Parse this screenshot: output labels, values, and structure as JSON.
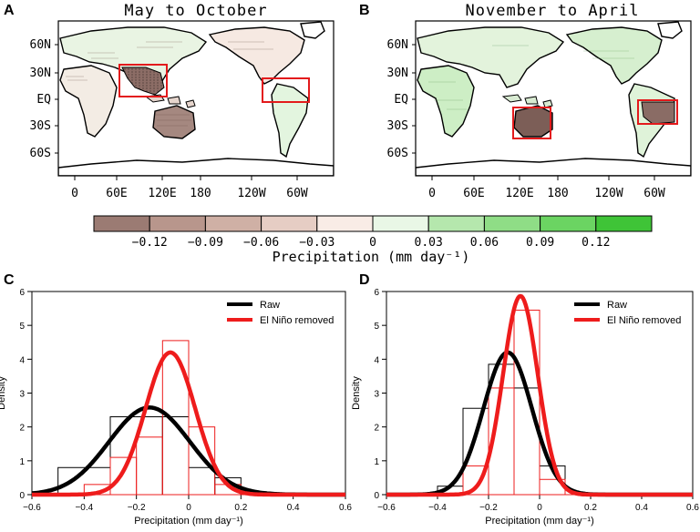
{
  "panels": {
    "A": {
      "letter": "A",
      "title": "May to October"
    },
    "B": {
      "letter": "B",
      "title": "November to April"
    },
    "C": {
      "letter": "C"
    },
    "D": {
      "letter": "D"
    }
  },
  "map_axes": {
    "lat_labels": [
      "60N",
      "30N",
      "EQ",
      "30S",
      "60S"
    ],
    "lon_labels": [
      "0",
      "60E",
      "120E",
      "180",
      "120W",
      "60W"
    ]
  },
  "colorbar": {
    "tick_labels": [
      "−0.12",
      "−0.09",
      "−0.06",
      "−0.03",
      "0",
      "0.03",
      "0.06",
      "0.09",
      "0.12"
    ],
    "label": "Precipitation (mm day⁻¹)",
    "colors": [
      "#9b7b73",
      "#b8968c",
      "#cfb0a5",
      "#e6cdc4",
      "#f9ece6",
      "#e9f7e6",
      "#b5e7ad",
      "#8fdd86",
      "#6bd462",
      "#3fc437"
    ]
  },
  "chart_data": [
    {
      "panel": "C",
      "type": "line",
      "xlabel": "Precipitation (mm day⁻¹)",
      "ylabel": "Density",
      "xlim": [
        -0.6,
        0.6
      ],
      "ylim": [
        0,
        6
      ],
      "xticks": [
        "−0.6",
        "−0.4",
        "−0.2",
        "0",
        "0.2",
        "0.4",
        "0.6"
      ],
      "yticks": [
        "0",
        "1",
        "2",
        "3",
        "4",
        "5",
        "6"
      ],
      "legend_position": "top-right",
      "series": [
        {
          "name": "Raw",
          "color": "#000000",
          "curve": {
            "mean": -0.15,
            "sd": 0.155
          },
          "histogram": {
            "bin_edges": [
              -0.5,
              -0.3,
              -0.1,
              0.0,
              0.1,
              0.2
            ],
            "density": [
              0.8,
              2.3,
              2.3,
              0.8,
              0.5
            ]
          }
        },
        {
          "name": "El Niño removed",
          "color": "#ee1c1c",
          "curve": {
            "mean": -0.07,
            "sd": 0.095
          },
          "histogram": {
            "bin_edges": [
              -0.4,
              -0.3,
              -0.2,
              -0.1,
              0.0,
              0.1,
              0.2
            ],
            "density": [
              0.3,
              1.1,
              1.7,
              4.55,
              2.0,
              0.3
            ]
          }
        }
      ]
    },
    {
      "panel": "D",
      "type": "line",
      "xlabel": "Precipitation (mm day⁻¹)",
      "ylabel": "Density",
      "xlim": [
        -0.6,
        0.6
      ],
      "ylim": [
        0,
        6
      ],
      "xticks": [
        "−0.6",
        "−0.4",
        "−0.2",
        "0",
        "0.2",
        "0.4",
        "0.6"
      ],
      "yticks": [
        "0",
        "1",
        "2",
        "3",
        "4",
        "5",
        "6"
      ],
      "legend_position": "top-right",
      "series": [
        {
          "name": "Raw",
          "color": "#000000",
          "curve": {
            "mean": -0.125,
            "sd": 0.095
          },
          "histogram": {
            "bin_edges": [
              -0.4,
              -0.3,
              -0.2,
              -0.1,
              0.0,
              0.1
            ],
            "density": [
              0.25,
              2.55,
              3.85,
              3.15,
              0.85
            ]
          }
        },
        {
          "name": "El Niño removed",
          "color": "#ee1c1c",
          "curve": {
            "mean": -0.075,
            "sd": 0.068
          },
          "histogram": {
            "bin_edges": [
              -0.3,
              -0.2,
              -0.1,
              0.0,
              0.1
            ],
            "density": [
              0.85,
              3.15,
              5.45,
              0.45
            ]
          }
        }
      ]
    }
  ]
}
